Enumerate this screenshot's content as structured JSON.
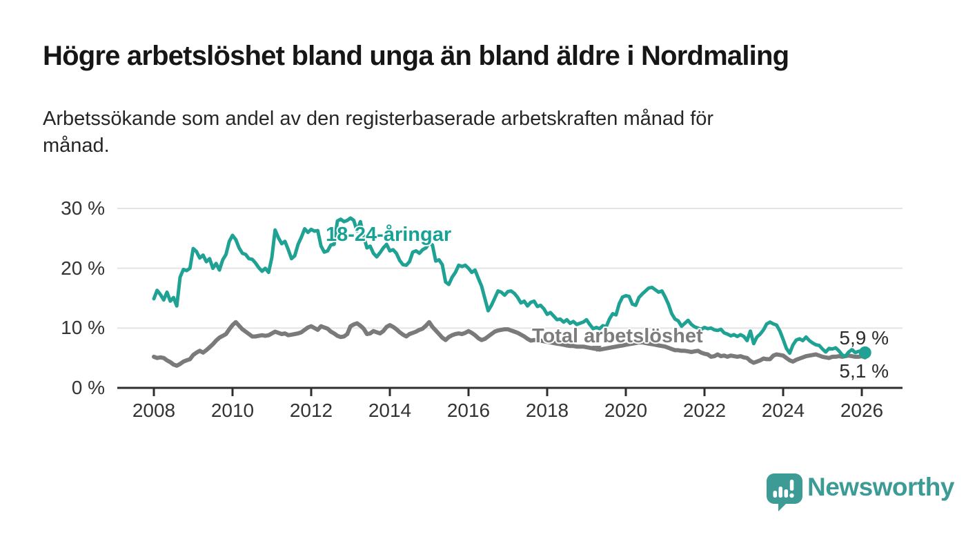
{
  "title": "Högre arbetslöshet bland unga än bland äldre i Nordmaling",
  "subtitle": {
    "lines": [
      "Arbetssökande som andel av den registerbaserade arbetskraften månad för",
      "månad."
    ]
  },
  "colors": {
    "young_line": "#1fa294",
    "young_label": "#17a296",
    "total_line": "#7a7a7a",
    "total_label": "#7d7d7d",
    "grid": "#e4e4e4",
    "axis": "#2d2d2d",
    "tick_text": "#333333",
    "value_text": "#2b2b2b",
    "logo": "#3d9b95"
  },
  "branding": {
    "logo_text": "Newsworthy",
    "logo_icon": "speech-bubble-bar-chart"
  },
  "chart_data": {
    "type": "line",
    "unit": "%",
    "grid": true,
    "x_axis": {
      "start_year": 2008.0,
      "interval_months": 1,
      "ticks": [
        2008,
        2010,
        2012,
        2014,
        2016,
        2018,
        2020,
        2022,
        2024,
        2026
      ],
      "tick_labels": [
        "2008",
        "2010",
        "2012",
        "2014",
        "2016",
        "2018",
        "2020",
        "2022",
        "2024",
        "2026"
      ]
    },
    "y_axis": {
      "range": [
        0,
        30
      ],
      "ticks": [
        30,
        20,
        10,
        0
      ],
      "tick_labels": [
        "30 %",
        "20 %",
        "10 %",
        "0 %"
      ]
    },
    "series": [
      {
        "name": "18-24-åringar",
        "color": "#1fa294",
        "end_label": "5,9 %",
        "end_value": 5.9,
        "values": [
          14.9,
          16.3,
          15.6,
          14.7,
          16.0,
          14.5,
          15.1,
          13.7,
          18.5,
          19.8,
          19.6,
          20.0,
          23.3,
          22.8,
          21.7,
          22.2,
          21.1,
          21.6,
          20.0,
          20.8,
          19.7,
          21.4,
          22.3,
          24.5,
          25.5,
          24.8,
          23.4,
          22.5,
          22.3,
          21.6,
          21.5,
          20.9,
          20.1,
          19.5,
          20.0,
          19.3,
          21.8,
          26.4,
          25.1,
          24.1,
          24.5,
          23.1,
          21.6,
          22.1,
          24.0,
          25.2,
          26.6,
          26.0,
          26.5,
          26.2,
          26.3,
          23.7,
          22.7,
          22.9,
          23.9,
          24.0,
          27.9,
          28.2,
          27.8,
          28.0,
          28.4,
          28.0,
          26.2,
          27.8,
          25.4,
          23.4,
          23.7,
          22.5,
          21.9,
          22.6,
          23.4,
          24.0,
          22.9,
          23.1,
          22.5,
          21.3,
          20.6,
          20.5,
          21.1,
          22.7,
          22.9,
          22.5,
          23.1,
          23.4,
          24.2,
          23.9,
          21.2,
          21.4,
          20.6,
          17.7,
          17.3,
          18.5,
          19.3,
          20.5,
          20.3,
          20.5,
          20.0,
          19.3,
          19.7,
          18.3,
          17.0,
          14.9,
          12.9,
          13.8,
          15.0,
          16.2,
          16.0,
          15.5,
          16.1,
          16.2,
          15.8,
          15.1,
          14.2,
          14.5,
          13.7,
          14.3,
          14.5,
          13.6,
          13.8,
          13.2,
          12.3,
          12.6,
          12.0,
          11.4,
          11.5,
          11.0,
          11.4,
          10.8,
          11.1,
          10.6,
          10.8,
          11.0,
          11.4,
          10.6,
          9.9,
          10.1,
          9.9,
          10.4,
          10.2,
          11.5,
          12.4,
          12.2,
          14.1,
          15.2,
          15.4,
          15.3,
          14.0,
          13.8,
          15.1,
          15.7,
          16.2,
          16.7,
          16.8,
          16.4,
          16.0,
          16.2,
          15.2,
          14.0,
          12.4,
          11.5,
          11.2,
          10.3,
          10.8,
          11.3,
          10.6,
          10.2,
          10.0,
          9.8,
          10.1,
          9.9,
          10.0,
          9.7,
          9.6,
          9.8,
          9.2,
          9.0,
          8.7,
          8.9,
          8.6,
          8.9,
          8.6,
          7.9,
          9.5,
          7.4,
          8.5,
          9.0,
          9.7,
          10.7,
          11.0,
          10.7,
          10.5,
          9.5,
          8.1,
          6.6,
          5.8,
          7.2,
          8.0,
          8.2,
          7.9,
          8.5,
          7.9,
          7.5,
          7.2,
          7.1,
          6.5,
          6.0,
          6.6,
          6.5,
          6.7,
          6.2,
          5.5,
          5.3,
          6.0,
          6.4,
          5.9,
          6.1,
          6.2,
          5.9
        ]
      },
      {
        "name": "Total arbetslöshet",
        "color": "#7a7a7a",
        "end_label": "5,1 %",
        "end_value": 5.1,
        "values": [
          5.2,
          5.0,
          5.1,
          5.0,
          4.6,
          4.3,
          3.9,
          3.7,
          4.0,
          4.4,
          4.6,
          4.8,
          5.5,
          5.9,
          6.2,
          5.9,
          6.3,
          6.8,
          7.3,
          7.9,
          8.4,
          8.7,
          9.0,
          9.8,
          10.5,
          11.0,
          10.4,
          9.8,
          9.4,
          9.0,
          8.6,
          8.6,
          8.7,
          8.8,
          8.7,
          8.8,
          9.1,
          9.4,
          9.2,
          9.0,
          9.1,
          8.8,
          8.9,
          9.0,
          9.1,
          9.3,
          9.7,
          10.1,
          10.3,
          10.0,
          9.7,
          10.3,
          10.1,
          9.9,
          9.4,
          9.1,
          8.7,
          8.5,
          8.6,
          9.0,
          10.3,
          10.6,
          10.8,
          10.4,
          9.9,
          9.0,
          9.1,
          9.5,
          9.3,
          9.1,
          9.5,
          10.2,
          10.5,
          10.2,
          9.8,
          9.3,
          8.9,
          8.6,
          9.0,
          9.2,
          9.4,
          9.7,
          9.9,
          10.4,
          11.0,
          10.2,
          9.6,
          9.0,
          8.4,
          8.0,
          8.5,
          8.8,
          9.0,
          9.1,
          9.0,
          9.2,
          9.5,
          9.2,
          8.8,
          8.3,
          8.0,
          8.2,
          8.6,
          9.0,
          9.4,
          9.6,
          9.7,
          9.8,
          9.8,
          9.6,
          9.4,
          9.2,
          8.9,
          8.6,
          8.2,
          7.9,
          8.0,
          8.0,
          7.9,
          7.8,
          7.7,
          7.6,
          7.5,
          7.4,
          7.3,
          7.2,
          7.1,
          7.0,
          7.0,
          6.9,
          6.9,
          6.9,
          6.8,
          6.7,
          6.6,
          6.5,
          6.4,
          6.5,
          6.6,
          6.7,
          6.8,
          6.9,
          7.0,
          7.1,
          7.2,
          7.3,
          7.4,
          7.5,
          7.6,
          7.6,
          7.5,
          7.4,
          7.3,
          7.2,
          7.1,
          7.0,
          6.9,
          6.7,
          6.5,
          6.3,
          6.3,
          6.2,
          6.2,
          6.1,
          6.0,
          6.1,
          6.2,
          5.9,
          5.7,
          5.6,
          5.2,
          5.3,
          5.6,
          5.3,
          5.4,
          5.2,
          5.4,
          5.3,
          5.2,
          5.3,
          5.1,
          5.0,
          4.5,
          4.2,
          4.4,
          4.6,
          4.9,
          4.8,
          4.8,
          5.4,
          5.6,
          5.5,
          5.4,
          5.0,
          4.6,
          4.4,
          4.7,
          4.9,
          5.1,
          5.3,
          5.4,
          5.5,
          5.6,
          5.4,
          5.2,
          5.1,
          5.0,
          5.2,
          5.2,
          5.3,
          5.2,
          5.3,
          5.4,
          5.3,
          5.2,
          5.2,
          5.3,
          5.1
        ]
      }
    ]
  }
}
